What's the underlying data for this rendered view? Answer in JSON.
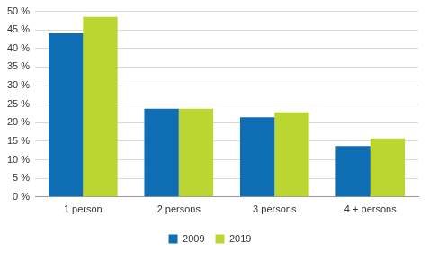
{
  "chart_data": {
    "type": "bar",
    "categories": [
      "1 person",
      "2 persons",
      "3 persons",
      "4 + persons"
    ],
    "series": [
      {
        "name": "2009",
        "color": "#0f6db3",
        "values": [
          44.1,
          23.8,
          21.5,
          13.7
        ]
      },
      {
        "name": "2019",
        "color": "#bcd631",
        "values": [
          48.5,
          23.8,
          22.8,
          15.8
        ]
      }
    ],
    "ylim": [
      0,
      50
    ],
    "yticks": [
      {
        "value": 0,
        "label": "0 %"
      },
      {
        "value": 5,
        "label": "5 %"
      },
      {
        "value": 10,
        "label": "10 %"
      },
      {
        "value": 15,
        "label": "15 %"
      },
      {
        "value": 20,
        "label": "20 %"
      },
      {
        "value": 25,
        "label": "25 %"
      },
      {
        "value": 30,
        "label": "30 %"
      },
      {
        "value": 35,
        "label": "35 %"
      },
      {
        "value": 40,
        "label": "40 %"
      },
      {
        "value": 45,
        "label": "45 %"
      },
      {
        "value": 50,
        "label": "50 %"
      }
    ],
    "grid": true,
    "legend": "bottom"
  }
}
